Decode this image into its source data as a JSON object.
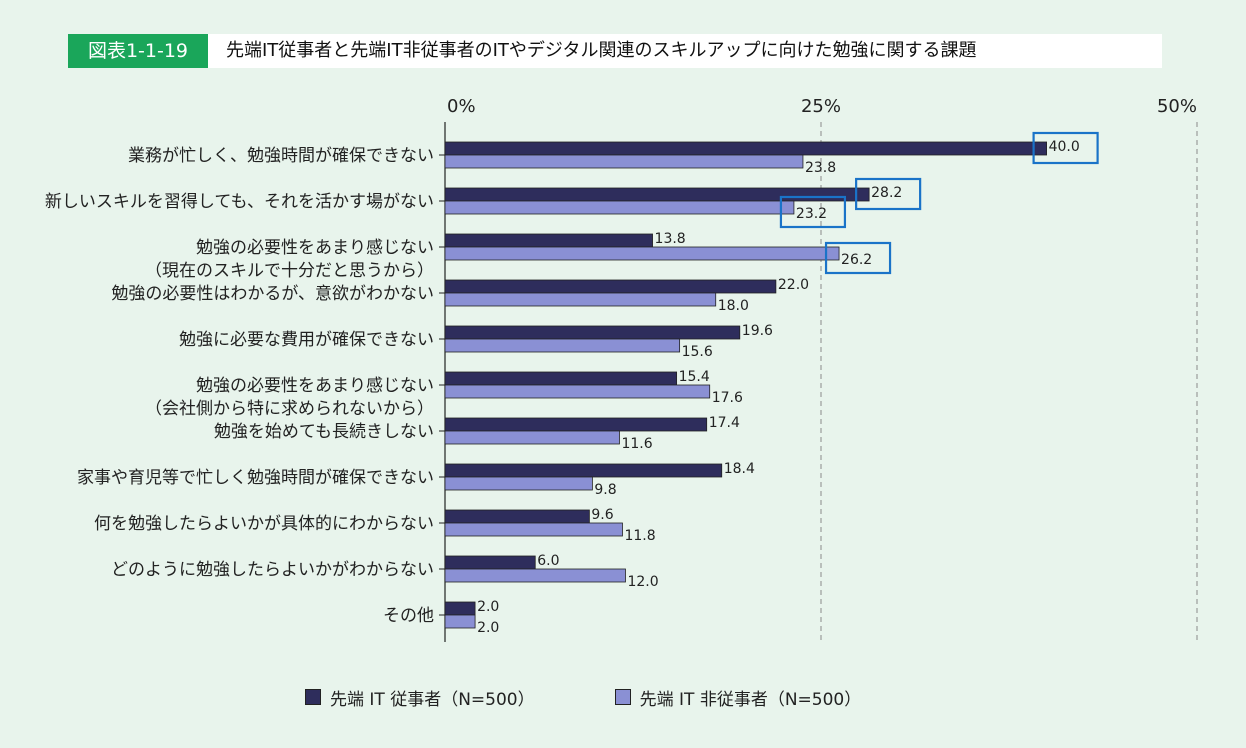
{
  "header": {
    "figure_id": "図表1-1-19",
    "title": "先端IT従事者と先端IT非従事者のITやデジタル関連のスキルアップに向けた勉強に関する課題"
  },
  "colors": {
    "series1": "#2e2d5c",
    "series2": "#8a90d4",
    "highlight": "#1a73c8",
    "accent_green": "#1aa65a"
  },
  "chart_data": {
    "type": "bar",
    "orientation": "horizontal",
    "title": "先端IT従事者と先端IT非従事者のITやデジタル関連のスキルアップに向けた勉強に関する課題",
    "xlim": [
      0,
      50
    ],
    "ticks": [
      {
        "value": 0,
        "label": "0%"
      },
      {
        "value": 25,
        "label": "25%"
      },
      {
        "value": 50,
        "label": "50%"
      }
    ],
    "categories": [
      [
        "業務が忙しく、勉強時間が確保できない"
      ],
      [
        "新しいスキルを習得しても、それを活かす場がない"
      ],
      [
        "勉強の必要性をあまり感じない",
        "（現在のスキルで十分だと思うから）"
      ],
      [
        "勉強の必要性はわかるが、意欲がわかない"
      ],
      [
        "勉強に必要な費用が確保できない"
      ],
      [
        "勉強の必要性をあまり感じない",
        "（会社側から特に求められないから）"
      ],
      [
        "勉強を始めても長続きしない"
      ],
      [
        "家事や育児等で忙しく勉強時間が確保できない"
      ],
      [
        "何を勉強したらよいかが具体的にわからない"
      ],
      [
        "どのように勉強したらよいかがわからない"
      ],
      [
        "その他"
      ]
    ],
    "series": [
      {
        "name": "先端 IT 従事者（N=500）",
        "values": [
          40.0,
          28.2,
          13.8,
          22.0,
          19.6,
          15.4,
          17.4,
          18.4,
          9.6,
          6.0,
          2.0
        ],
        "labels": [
          "40.0",
          "28.2",
          "13.8",
          "22.0",
          "19.6",
          "15.4",
          "17.4",
          "18.4",
          "9.6",
          "6.0",
          "2.0"
        ]
      },
      {
        "name": "先端 IT 非従事者（N=500）",
        "values": [
          23.8,
          23.2,
          26.2,
          18.0,
          15.6,
          17.6,
          11.6,
          9.8,
          11.8,
          12.0,
          2.0
        ],
        "labels": [
          "23.8",
          "23.2",
          "26.2",
          "18.0",
          "15.6",
          "17.6",
          "11.6",
          "9.8",
          "11.8",
          "12.0",
          "2.0"
        ]
      }
    ],
    "highlighted": [
      [
        0,
        0
      ],
      [
        1,
        0
      ],
      [
        1,
        1
      ],
      [
        2,
        1
      ]
    ],
    "legend": [
      "先端 IT 従事者（N=500）",
      "先端 IT 非従事者（N=500）"
    ],
    "legend_position": "bottom"
  }
}
